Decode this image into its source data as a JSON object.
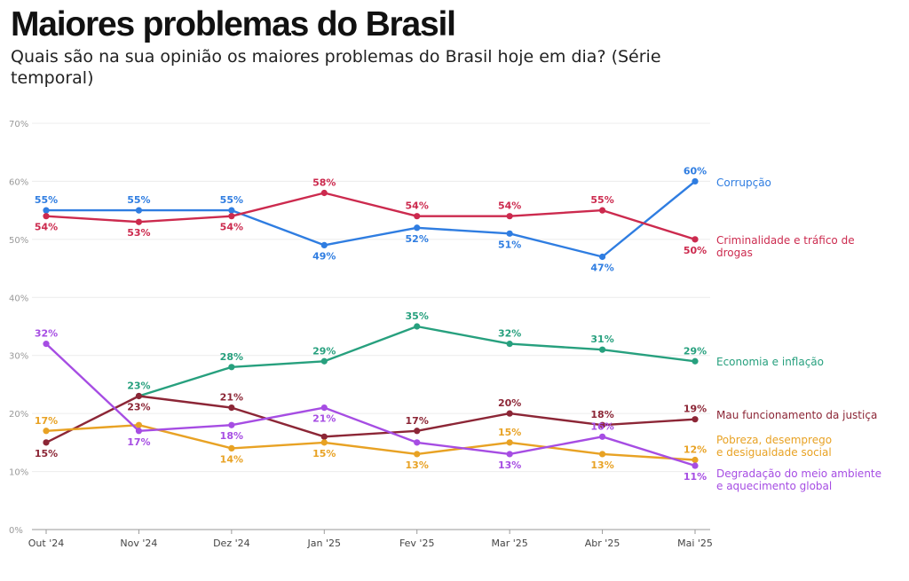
{
  "header": {
    "title": "Maiores problemas do Brasil",
    "subtitle": "Quais são na sua opinião os maiores problemas do Brasil hoje em dia? (Série temporal)"
  },
  "chart_data": {
    "type": "line",
    "title": "Maiores problemas do Brasil",
    "subtitle": "Quais são na sua opinião os maiores problemas do Brasil hoje em dia? (Série temporal)",
    "xlabel": "",
    "ylabel": "",
    "categories": [
      "Out '24",
      "Nov '24",
      "Dez '24",
      "Jan '25",
      "Fev '25",
      "Mar '25",
      "Abr '25",
      "Mai '25"
    ],
    "ylim": [
      0,
      70
    ],
    "yticks": [
      0,
      10,
      20,
      30,
      40,
      50,
      60,
      70
    ],
    "ytick_labels": [
      "0%",
      "10%",
      "20%",
      "30%",
      "40%",
      "50%",
      "60%",
      "70%"
    ],
    "grid": true,
    "legend": "direct labels at right end",
    "series": [
      {
        "name": "Corrupção",
        "color": "#2f7de1",
        "values": [
          55,
          55,
          55,
          49,
          52,
          51,
          47,
          60
        ],
        "labels": [
          "55%",
          "55%",
          "55%",
          "49%",
          "52%",
          "51%",
          "47%",
          "60%"
        ]
      },
      {
        "name": "Criminalidade e tráfico de drogas",
        "color": "#cc2a4e",
        "values": [
          54,
          53,
          54,
          58,
          54,
          54,
          55,
          50
        ],
        "labels": [
          "54%",
          "53%",
          "54%",
          "58%",
          "54%",
          "54%",
          "55%",
          "50%"
        ]
      },
      {
        "name": "Economia e inflação",
        "color": "#27a07e",
        "values": [
          null,
          23,
          28,
          29,
          35,
          32,
          31,
          29
        ],
        "labels": [
          null,
          "23%",
          "28%",
          "29%",
          "35%",
          "32%",
          "31%",
          "29%"
        ]
      },
      {
        "name": "Mau funcionamento da justiça",
        "color": "#8c2636",
        "values": [
          15,
          23,
          21,
          16,
          17,
          20,
          18,
          19
        ],
        "labels": [
          "15%",
          "23%",
          "21%",
          null,
          "17%",
          "20%",
          "18%",
          "19%"
        ]
      },
      {
        "name": "Pobreza, desemprego e desigualdade social",
        "color": "#e8a224",
        "values": [
          17,
          18,
          14,
          15,
          13,
          15,
          13,
          12
        ],
        "labels": [
          "17%",
          null,
          "14%",
          "15%",
          "13%",
          "15%",
          "13%",
          "12%"
        ]
      },
      {
        "name": "Degradação do meio ambiente e aquecimento global",
        "color": "#a64de3",
        "values": [
          32,
          17,
          18,
          21,
          15,
          13,
          16,
          11
        ],
        "labels": [
          "32%",
          "17%",
          "18%",
          "21%",
          null,
          "13%",
          "16%",
          "11%"
        ]
      }
    ]
  }
}
